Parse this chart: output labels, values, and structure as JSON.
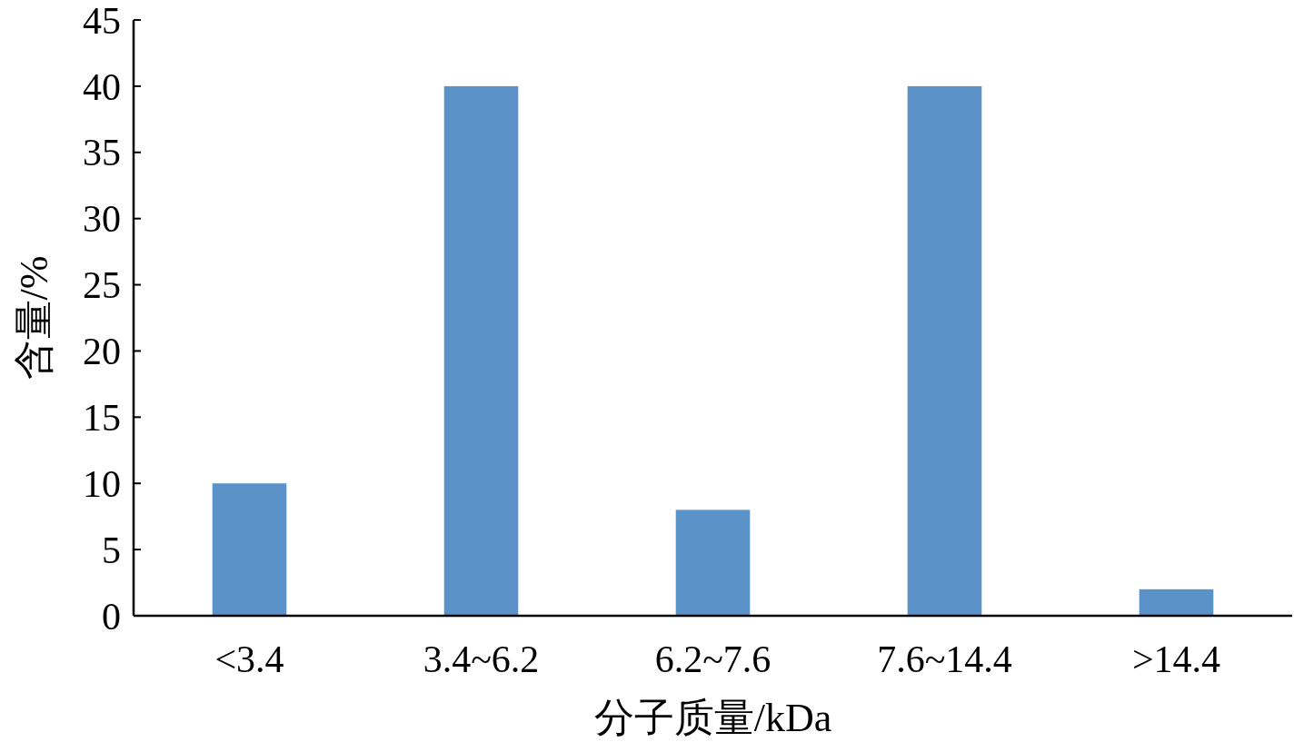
{
  "chart_data": {
    "type": "bar",
    "xlabel": "分子质量/kDa",
    "ylabel": "含量/%",
    "categories": [
      "<3.4",
      "3.4~6.2",
      "6.2~7.6",
      "7.6~14.4",
      ">14.4"
    ],
    "values": [
      10,
      40,
      8,
      40,
      2
    ],
    "color": "#5b93c9",
    "ylim": [
      0,
      45
    ],
    "yticks": [
      0,
      5,
      10,
      15,
      20,
      25,
      30,
      35,
      40,
      45
    ],
    "grid": false
  }
}
